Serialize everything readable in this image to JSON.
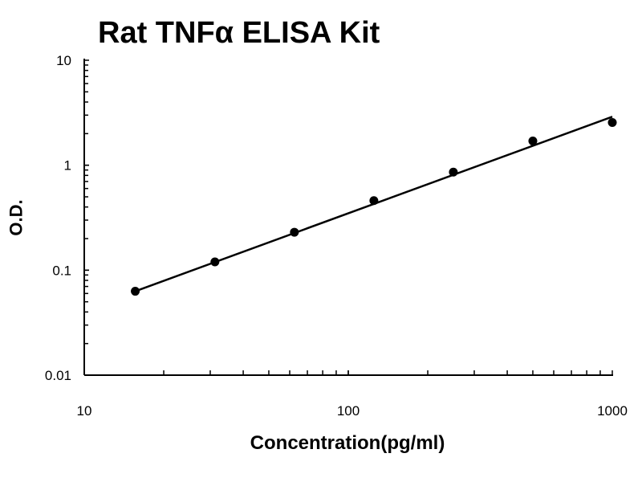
{
  "chart_data": {
    "type": "scatter",
    "title": "Rat TNFα ELISA Kit",
    "xlabel": "Concentration(pg/ml)",
    "ylabel": "O.D.",
    "xscale": "log",
    "yscale": "log",
    "xlim": [
      10,
      1000
    ],
    "ylim": [
      0.01,
      10
    ],
    "xticks": [
      "10",
      "100",
      "1000"
    ],
    "yticks": [
      "0.01",
      "0.1",
      "1",
      "10"
    ],
    "grid": false,
    "points": {
      "x": [
        15.6,
        31.25,
        62.5,
        125,
        250,
        500,
        1000
      ],
      "y": [
        0.063,
        0.12,
        0.23,
        0.46,
        0.86,
        1.7,
        2.55
      ]
    },
    "fit_line": {
      "x": [
        15.6,
        1000
      ],
      "y": [
        0.063,
        2.9
      ]
    },
    "color": "#000000"
  }
}
